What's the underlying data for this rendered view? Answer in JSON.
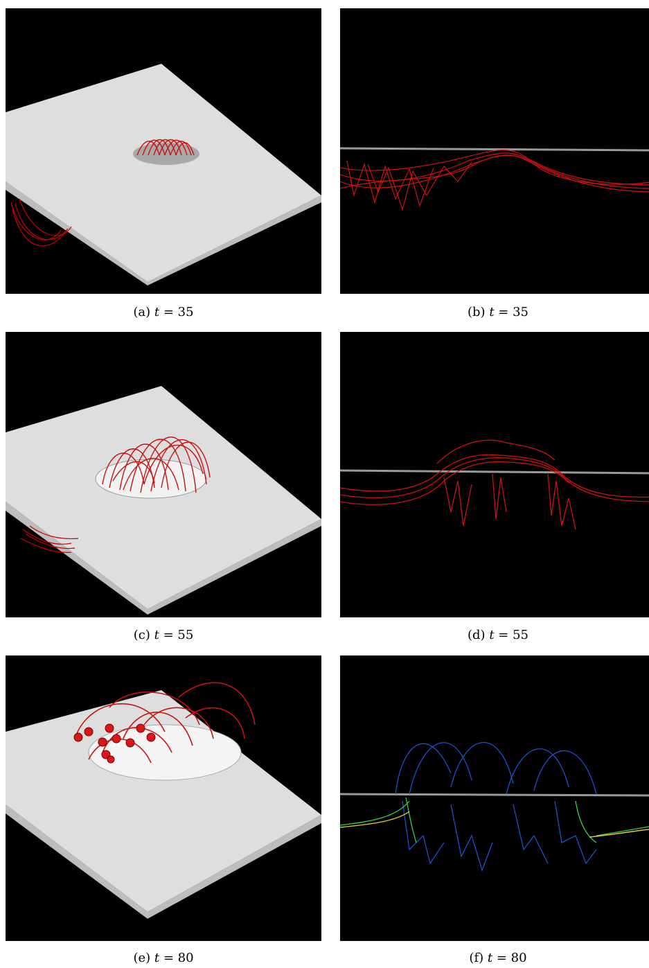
{
  "figure": {
    "panels": [
      {
        "id": "a",
        "caption_label": "(a)",
        "caption_var": "t",
        "caption_eq": "= 35",
        "view": "perspective-surface"
      },
      {
        "id": "b",
        "caption_label": "(b)",
        "caption_var": "t",
        "caption_eq": "= 35",
        "view": "side-fieldlines"
      },
      {
        "id": "c",
        "caption_label": "(c)",
        "caption_var": "t",
        "caption_eq": "= 55",
        "view": "perspective-surface"
      },
      {
        "id": "d",
        "caption_label": "(d)",
        "caption_var": "t",
        "caption_eq": "= 55",
        "view": "side-fieldlines"
      },
      {
        "id": "e",
        "caption_label": "(e)",
        "caption_var": "t",
        "caption_eq": "= 80",
        "view": "perspective-surface"
      },
      {
        "id": "f",
        "caption_label": "(f)",
        "caption_var": "t",
        "caption_eq": "= 80",
        "view": "side-fieldlines-colored"
      }
    ],
    "colors": {
      "background": "#000000",
      "surface": "#dcdcdc",
      "fieldline": "#d01010",
      "photosphere_line": "#9a9a9a"
    }
  }
}
